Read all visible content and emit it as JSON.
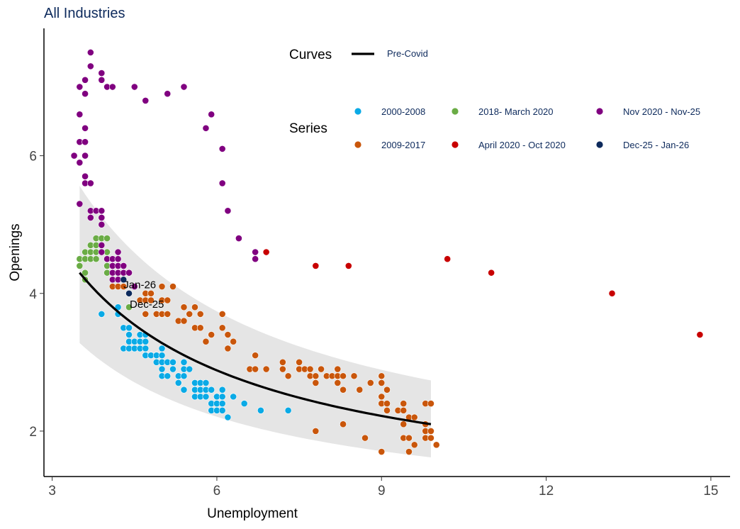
{
  "chart_data": {
    "type": "scatter",
    "title": "All Industries",
    "xlabel": "Unemployment",
    "ylabel": "Openings",
    "xlim": [
      2.85,
      15.35
    ],
    "ylim": [
      1.34,
      7.85
    ],
    "xticks": [
      3,
      6,
      9,
      12,
      15
    ],
    "yticks": [
      2,
      4,
      6
    ],
    "grid": false,
    "legend": {
      "curves_title": "Curves",
      "series_title": "Series",
      "placement": "top-right"
    },
    "curves": [
      {
        "name": "Pre-Covid",
        "color": "#000000",
        "x_range": [
          3.5,
          9.9
        ],
        "form": "y = a + b/x",
        "a": 0.897,
        "b": 11.91,
        "band": {
          "upper": {
            "a": 1.19,
            "b": 15.3
          },
          "lower": {
            "a": 0.71,
            "b": 8.99
          },
          "color": "#e5e5e5"
        }
      }
    ],
    "series": [
      {
        "name": "2000-2008",
        "color": "#0aaae6",
        "points": [
          [
            4.2,
            3.8
          ],
          [
            3.9,
            3.7
          ],
          [
            4.2,
            3.7
          ],
          [
            4.3,
            3.5
          ],
          [
            4.4,
            3.5
          ],
          [
            4.4,
            3.4
          ],
          [
            4.6,
            3.4
          ],
          [
            4.7,
            3.4
          ],
          [
            4.4,
            3.3
          ],
          [
            4.5,
            3.3
          ],
          [
            4.6,
            3.3
          ],
          [
            4.7,
            3.3
          ],
          [
            4.3,
            3.2
          ],
          [
            4.4,
            3.2
          ],
          [
            4.5,
            3.2
          ],
          [
            4.6,
            3.2
          ],
          [
            4.7,
            3.2
          ],
          [
            5.0,
            3.2
          ],
          [
            4.7,
            3.1
          ],
          [
            4.8,
            3.1
          ],
          [
            4.9,
            3.1
          ],
          [
            5.0,
            3.1
          ],
          [
            4.9,
            3.0
          ],
          [
            5.0,
            3.0
          ],
          [
            5.1,
            3.0
          ],
          [
            5.2,
            3.0
          ],
          [
            5.4,
            3.0
          ],
          [
            5.0,
            2.9
          ],
          [
            5.2,
            2.9
          ],
          [
            5.4,
            2.9
          ],
          [
            5.5,
            2.9
          ],
          [
            5.0,
            2.8
          ],
          [
            5.1,
            2.8
          ],
          [
            5.3,
            2.8
          ],
          [
            5.4,
            2.8
          ],
          [
            5.3,
            2.7
          ],
          [
            5.6,
            2.7
          ],
          [
            5.7,
            2.7
          ],
          [
            5.8,
            2.7
          ],
          [
            5.4,
            2.6
          ],
          [
            5.6,
            2.6
          ],
          [
            5.7,
            2.6
          ],
          [
            5.8,
            2.6
          ],
          [
            5.9,
            2.6
          ],
          [
            6.1,
            2.6
          ],
          [
            5.6,
            2.5
          ],
          [
            5.7,
            2.5
          ],
          [
            5.8,
            2.5
          ],
          [
            6.0,
            2.5
          ],
          [
            6.1,
            2.5
          ],
          [
            6.3,
            2.5
          ],
          [
            5.9,
            2.4
          ],
          [
            6.0,
            2.4
          ],
          [
            6.1,
            2.4
          ],
          [
            6.5,
            2.4
          ],
          [
            5.9,
            2.3
          ],
          [
            6.0,
            2.3
          ],
          [
            6.1,
            2.3
          ],
          [
            6.8,
            2.3
          ],
          [
            7.3,
            2.3
          ],
          [
            6.2,
            2.2
          ]
        ]
      },
      {
        "name": "2009-2017",
        "color": "#c9560b",
        "points": [
          [
            4.1,
            4.1
          ],
          [
            4.2,
            4.1
          ],
          [
            4.3,
            4.1
          ],
          [
            5.0,
            4.1
          ],
          [
            5.2,
            4.1
          ],
          [
            4.7,
            4.0
          ],
          [
            4.8,
            4.0
          ],
          [
            4.6,
            3.9
          ],
          [
            4.7,
            3.9
          ],
          [
            4.8,
            3.9
          ],
          [
            5.0,
            3.9
          ],
          [
            5.1,
            3.9
          ],
          [
            5.4,
            3.8
          ],
          [
            5.6,
            3.8
          ],
          [
            4.7,
            3.7
          ],
          [
            4.9,
            3.7
          ],
          [
            5.0,
            3.7
          ],
          [
            5.1,
            3.7
          ],
          [
            5.5,
            3.7
          ],
          [
            5.7,
            3.7
          ],
          [
            6.1,
            3.7
          ],
          [
            5.3,
            3.6
          ],
          [
            5.4,
            3.6
          ],
          [
            5.6,
            3.5
          ],
          [
            5.7,
            3.5
          ],
          [
            6.1,
            3.5
          ],
          [
            5.9,
            3.4
          ],
          [
            6.2,
            3.4
          ],
          [
            5.8,
            3.3
          ],
          [
            6.3,
            3.3
          ],
          [
            6.2,
            3.2
          ],
          [
            6.7,
            3.1
          ],
          [
            7.2,
            3.0
          ],
          [
            7.5,
            3.0
          ],
          [
            6.6,
            2.9
          ],
          [
            6.7,
            2.9
          ],
          [
            6.9,
            2.9
          ],
          [
            7.2,
            2.9
          ],
          [
            7.5,
            2.9
          ],
          [
            7.6,
            2.9
          ],
          [
            7.7,
            2.9
          ],
          [
            7.9,
            2.9
          ],
          [
            8.2,
            2.9
          ],
          [
            7.3,
            2.8
          ],
          [
            7.7,
            2.8
          ],
          [
            7.8,
            2.8
          ],
          [
            8.0,
            2.8
          ],
          [
            8.1,
            2.8
          ],
          [
            8.2,
            2.8
          ],
          [
            8.3,
            2.8
          ],
          [
            8.5,
            2.8
          ],
          [
            9.0,
            2.8
          ],
          [
            7.8,
            2.7
          ],
          [
            8.2,
            2.7
          ],
          [
            8.8,
            2.7
          ],
          [
            9.0,
            2.7
          ],
          [
            8.3,
            2.6
          ],
          [
            8.6,
            2.6
          ],
          [
            9.1,
            2.6
          ],
          [
            9.0,
            2.5
          ],
          [
            9.0,
            2.4
          ],
          [
            9.1,
            2.4
          ],
          [
            9.4,
            2.4
          ],
          [
            9.8,
            2.4
          ],
          [
            9.9,
            2.4
          ],
          [
            9.1,
            2.3
          ],
          [
            9.3,
            2.3
          ],
          [
            9.4,
            2.3
          ],
          [
            9.5,
            2.2
          ],
          [
            9.6,
            2.2
          ],
          [
            8.3,
            2.1
          ],
          [
            9.4,
            2.1
          ],
          [
            9.8,
            2.1
          ],
          [
            7.8,
            2.0
          ],
          [
            9.8,
            2.0
          ],
          [
            9.9,
            2.0
          ],
          [
            8.7,
            1.9
          ],
          [
            9.4,
            1.9
          ],
          [
            9.5,
            1.9
          ],
          [
            9.8,
            1.9
          ],
          [
            9.9,
            1.9
          ],
          [
            9.6,
            1.8
          ],
          [
            10.0,
            1.8
          ],
          [
            9.0,
            1.7
          ],
          [
            9.5,
            1.7
          ]
        ]
      },
      {
        "name": "2018- March 2020",
        "color": "#6aac45",
        "points": [
          [
            3.8,
            4.8
          ],
          [
            3.9,
            4.8
          ],
          [
            4.0,
            4.8
          ],
          [
            3.7,
            4.7
          ],
          [
            3.8,
            4.7
          ],
          [
            3.6,
            4.6
          ],
          [
            3.7,
            4.6
          ],
          [
            3.8,
            4.6
          ],
          [
            4.0,
            4.6
          ],
          [
            3.5,
            4.5
          ],
          [
            3.6,
            4.5
          ],
          [
            3.7,
            4.5
          ],
          [
            3.8,
            4.5
          ],
          [
            3.5,
            4.4
          ],
          [
            4.0,
            4.4
          ],
          [
            3.6,
            4.3
          ],
          [
            4.0,
            4.3
          ],
          [
            3.6,
            4.2
          ],
          [
            4.4,
            3.8
          ]
        ]
      },
      {
        "name": "April 2020 - Oct 2020",
        "color": "#c80000",
        "points": [
          [
            6.9,
            4.6
          ],
          [
            7.8,
            4.4
          ],
          [
            8.4,
            4.4
          ],
          [
            10.2,
            4.5
          ],
          [
            11.0,
            4.3
          ],
          [
            13.2,
            4.0
          ],
          [
            14.8,
            3.4
          ]
        ]
      },
      {
        "name": "Nov 2020 - Nov-25",
        "color": "#800080",
        "points": [
          [
            3.7,
            7.5
          ],
          [
            3.7,
            7.3
          ],
          [
            3.9,
            7.2
          ],
          [
            3.9,
            7.1
          ],
          [
            3.6,
            7.1
          ],
          [
            3.5,
            7.0
          ],
          [
            3.6,
            6.9
          ],
          [
            4.0,
            7.0
          ],
          [
            4.1,
            7.0
          ],
          [
            4.5,
            7.0
          ],
          [
            4.7,
            6.8
          ],
          [
            5.1,
            6.9
          ],
          [
            5.4,
            7.0
          ],
          [
            5.9,
            6.6
          ],
          [
            5.8,
            6.4
          ],
          [
            6.1,
            6.1
          ],
          [
            6.1,
            5.6
          ],
          [
            6.2,
            5.2
          ],
          [
            6.4,
            4.8
          ],
          [
            6.7,
            4.6
          ],
          [
            6.7,
            4.5
          ],
          [
            3.5,
            6.6
          ],
          [
            3.6,
            6.4
          ],
          [
            3.5,
            6.2
          ],
          [
            3.6,
            6.2
          ],
          [
            3.4,
            6.0
          ],
          [
            3.6,
            6.0
          ],
          [
            3.5,
            5.9
          ],
          [
            3.6,
            5.7
          ],
          [
            3.6,
            5.6
          ],
          [
            3.7,
            5.6
          ],
          [
            3.5,
            5.3
          ],
          [
            3.7,
            5.2
          ],
          [
            3.8,
            5.2
          ],
          [
            3.9,
            5.2
          ],
          [
            3.7,
            5.1
          ],
          [
            3.9,
            5.1
          ],
          [
            3.9,
            5.0
          ],
          [
            3.9,
            4.7
          ],
          [
            3.9,
            4.6
          ],
          [
            4.2,
            4.6
          ],
          [
            4.0,
            4.5
          ],
          [
            4.1,
            4.5
          ],
          [
            4.2,
            4.5
          ],
          [
            4.1,
            4.4
          ],
          [
            4.2,
            4.4
          ],
          [
            4.3,
            4.4
          ],
          [
            4.1,
            4.3
          ],
          [
            4.2,
            4.3
          ],
          [
            4.3,
            4.3
          ],
          [
            4.4,
            4.3
          ],
          [
            4.1,
            4.2
          ],
          [
            4.2,
            4.2
          ],
          [
            4.5,
            4.1
          ]
        ]
      },
      {
        "name": "Dec-25 - Jan-26",
        "color": "#0d2a5c",
        "points": [
          [
            4.3,
            4.2
          ],
          [
            4.4,
            4.0
          ]
        ],
        "labels": [
          "Jan-26",
          "Dec-25"
        ]
      }
    ]
  }
}
